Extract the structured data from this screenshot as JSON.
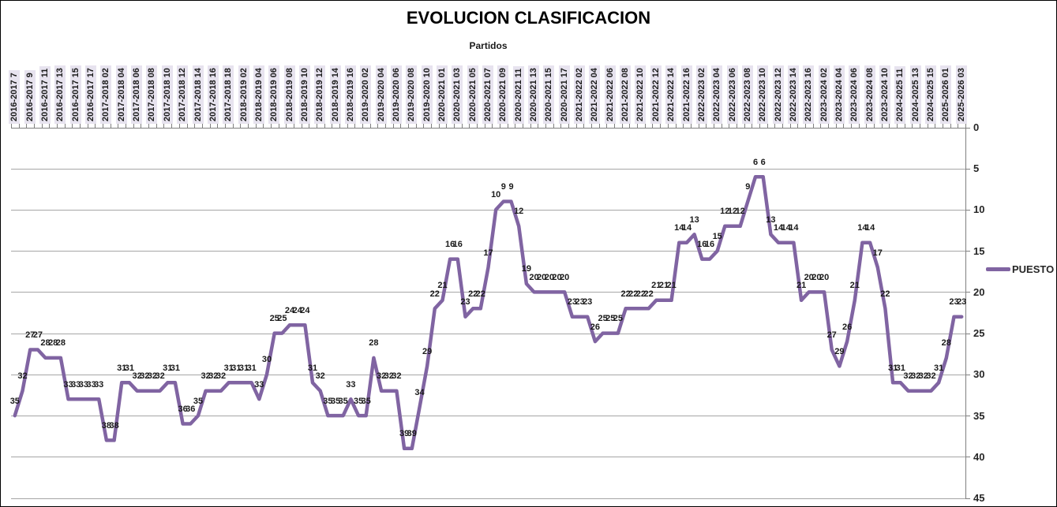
{
  "chart_data": {
    "type": "line",
    "title": "EVOLUCION CLASIFICACION",
    "axis_title": "Partidos",
    "legend_position": "right",
    "y_axis_reversed": true,
    "ylim": [
      0,
      45
    ],
    "y_ticks": [
      0,
      5,
      10,
      15,
      20,
      25,
      30,
      35,
      40,
      45
    ],
    "grid": true,
    "data_labels": true,
    "category_label_interval": 2,
    "categories": [
      "2016-2017 7",
      "2016-2017 9",
      "2016-2017 11",
      "2016-2017 13",
      "2016-2017 15",
      "2016-2017 17",
      "2017-2018 02",
      "2017-2018 04",
      "2017-2018 06",
      "2017-2018 08",
      "2017-2018 10",
      "2017-2018 12",
      "2017-2018 14",
      "2017-2018 16",
      "2017-2018 18",
      "2018-2019 02",
      "2018-2019 04",
      "2018-2019 06",
      "2018-2019 08",
      "2018-2019 10",
      "2018-2019 12",
      "2018-2019 14",
      "2018-2019 16",
      "2019-2020 02",
      "2019-2020 04",
      "2019-2020 06",
      "2019-2020 08",
      "2019-2020 10",
      "2020-2021 01",
      "2020-2021 03",
      "2020-2021 05",
      "2020-2021 07",
      "2020-2021 09",
      "2020-2021 11",
      "2020-2021 13",
      "2020-2021 15",
      "2020-2021 17",
      "2021-2022 02",
      "2021-2022 04",
      "2021-2022 06",
      "2021-2022 08",
      "2021-2022 10",
      "2021-2022 12",
      "2021-2022 14",
      "2021-2022 16",
      "2022-2023 02",
      "2022-2023 04",
      "2022-2023 06",
      "2022-2023 08",
      "2022-2023 10",
      "2022-2023 12",
      "2022-2023 14",
      "2022-2023 16",
      "2023-2024 02",
      "2023-2024 04",
      "2023-2024 06",
      "2023-2024 08",
      "2023-2024 10",
      "2024-2025 11",
      "2024-2025 13",
      "2024-2025 15",
      "2025-2026 01",
      "2025-2026 03"
    ],
    "series": [
      {
        "name": "PUESTO",
        "color": "#8064A2",
        "values": [
          35,
          32,
          27,
          27,
          28,
          28,
          28,
          33,
          33,
          33,
          33,
          33,
          38,
          38,
          31,
          31,
          32,
          32,
          32,
          32,
          31,
          31,
          36,
          36,
          35,
          32,
          32,
          32,
          31,
          31,
          31,
          31,
          33,
          30,
          25,
          25,
          24,
          24,
          24,
          31,
          32,
          35,
          35,
          35,
          33,
          35,
          35,
          28,
          32,
          32,
          32,
          39,
          39,
          34,
          29,
          22,
          21,
          16,
          16,
          23,
          22,
          22,
          17,
          10,
          9,
          9,
          12,
          19,
          20,
          20,
          20,
          20,
          20,
          23,
          23,
          23,
          26,
          25,
          25,
          25,
          22,
          22,
          22,
          22,
          21,
          21,
          21,
          14,
          14,
          13,
          16,
          16,
          15,
          12,
          12,
          12,
          9,
          6,
          6,
          13,
          14,
          14,
          14,
          21,
          20,
          20,
          20,
          27,
          29,
          26,
          21,
          14,
          14,
          17,
          22,
          31,
          31,
          32,
          32,
          32,
          32,
          31,
          28,
          23,
          23
        ]
      }
    ],
    "colors": {
      "series": "#8064A2",
      "gridline": "#a6a6a6",
      "axis": "#808080",
      "category_label_bg": "#e7e3ef",
      "text": "#1a1a1a"
    }
  }
}
